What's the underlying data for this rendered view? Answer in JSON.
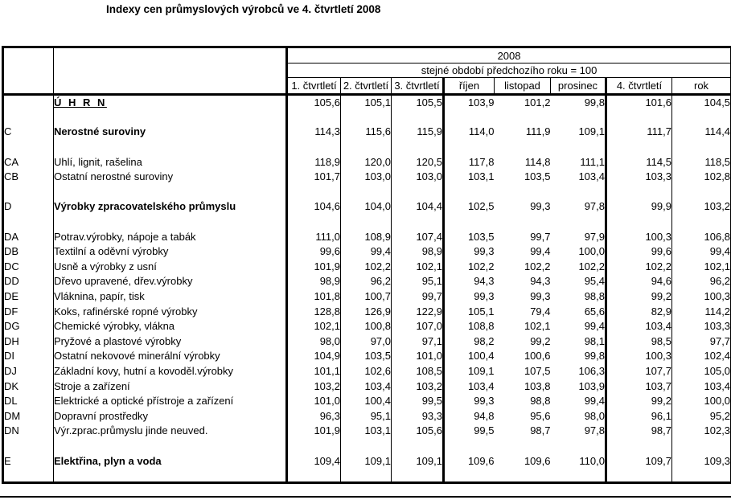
{
  "title": "Indexy cen průmyslových výrobců ve 4. čtvrtletí 2008",
  "table": {
    "year_header": "2008",
    "subheader": "stejné období předchozího roku = 100",
    "columns": [
      "1. čtvrtletí",
      "2. čtvrtletí",
      "3. čtvrtletí",
      "říjen",
      "listopad",
      "prosinec",
      "4. čtvrtletí",
      "rok"
    ],
    "rows": [
      {
        "style": "total",
        "code": "",
        "name": "Ú H R N",
        "values": [
          "105,6",
          "105,1",
          "105,5",
          "103,9",
          "101,2",
          "99,8",
          "101,6",
          "104,5"
        ]
      },
      {
        "blank": true
      },
      {
        "style": "bold",
        "code": "C",
        "name": "Nerostné suroviny",
        "values": [
          "114,3",
          "115,6",
          "115,9",
          "114,0",
          "111,9",
          "109,1",
          "111,7",
          "114,4"
        ]
      },
      {
        "blank": true
      },
      {
        "code": "CA",
        "name": "Uhlí, lignit, rašelina",
        "values": [
          "118,9",
          "120,0",
          "120,5",
          "117,8",
          "114,8",
          "111,1",
          "114,5",
          "118,5"
        ]
      },
      {
        "code": "CB",
        "name": "Ostatní nerostné suroviny",
        "values": [
          "101,7",
          "103,0",
          "103,0",
          "103,1",
          "103,5",
          "103,4",
          "103,3",
          "102,8"
        ]
      },
      {
        "blank": true
      },
      {
        "style": "bold",
        "code": "D",
        "name": "Výrobky zpracovatelského průmyslu",
        "values": [
          "104,6",
          "104,0",
          "104,4",
          "102,5",
          "99,3",
          "97,8",
          "99,9",
          "103,2"
        ]
      },
      {
        "blank": true
      },
      {
        "code": "DA",
        "name": "Potrav.výrobky, nápoje a tabák",
        "values": [
          "111,0",
          "108,9",
          "107,4",
          "103,5",
          "99,7",
          "97,9",
          "100,3",
          "106,8"
        ]
      },
      {
        "code": "DB",
        "name": "Textilní a oděvní výrobky",
        "values": [
          "99,6",
          "99,4",
          "98,9",
          "99,3",
          "99,4",
          "100,0",
          "99,6",
          "99,4"
        ]
      },
      {
        "code": "DC",
        "name": "Usně a výrobky z usní",
        "values": [
          "101,9",
          "102,2",
          "102,1",
          "102,2",
          "102,2",
          "102,2",
          "102,2",
          "102,1"
        ]
      },
      {
        "code": "DD",
        "name": "Dřevo upravené, dřev.výrobky",
        "values": [
          "98,9",
          "96,2",
          "95,1",
          "94,3",
          "94,3",
          "95,4",
          "94,6",
          "96,2"
        ]
      },
      {
        "code": "DE",
        "name": "Vláknina, papír, tisk",
        "values": [
          "101,8",
          "100,7",
          "99,7",
          "99,3",
          "99,3",
          "98,8",
          "99,2",
          "100,3"
        ]
      },
      {
        "code": "DF",
        "name": "Koks, rafinérské ropné výrobky",
        "values": [
          "128,8",
          "126,9",
          "122,9",
          "105,1",
          "79,4",
          "65,6",
          "82,9",
          "114,2"
        ]
      },
      {
        "code": "DG",
        "name": "Chemické výrobky, vlákna",
        "values": [
          "102,1",
          "100,8",
          "107,0",
          "108,8",
          "102,1",
          "99,4",
          "103,4",
          "103,3"
        ]
      },
      {
        "code": "DH",
        "name": "Pryžové a plastové výrobky",
        "values": [
          "98,0",
          "97,0",
          "97,1",
          "98,2",
          "99,2",
          "98,1",
          "98,5",
          "97,7"
        ]
      },
      {
        "code": "DI",
        "name": "Ostatní nekovové minerální výrobky",
        "values": [
          "104,9",
          "103,5",
          "101,0",
          "100,4",
          "100,6",
          "99,8",
          "100,3",
          "102,4"
        ]
      },
      {
        "code": "DJ",
        "name": "Základní kovy, hutní a kovoděl.výrobky",
        "values": [
          "101,1",
          "102,6",
          "108,5",
          "109,1",
          "107,5",
          "106,3",
          "107,7",
          "105,0"
        ]
      },
      {
        "code": "DK",
        "name": "Stroje a zařízení",
        "values": [
          "103,2",
          "103,4",
          "103,2",
          "103,4",
          "103,8",
          "103,9",
          "103,7",
          "103,4"
        ]
      },
      {
        "code": "DL",
        "name": "Elektrické a optické přístroje a zařízení",
        "values": [
          "101,0",
          "100,4",
          "99,5",
          "99,3",
          "98,8",
          "99,4",
          "99,2",
          "100,0"
        ]
      },
      {
        "code": "DM",
        "name": "Dopravní prostředky",
        "values": [
          "96,3",
          "95,1",
          "93,3",
          "94,8",
          "95,6",
          "98,0",
          "96,1",
          "95,2"
        ]
      },
      {
        "code": "DN",
        "name": "Výr.zprac.průmyslu jinde neuved.",
        "values": [
          "101,9",
          "103,1",
          "105,6",
          "99,5",
          "98,7",
          "97,8",
          "98,7",
          "102,3"
        ]
      },
      {
        "blank": true
      },
      {
        "style": "bold",
        "code": "E",
        "name": "Elektřina, plyn a voda",
        "values": [
          "109,4",
          "109,1",
          "109,1",
          "109,6",
          "109,6",
          "110,0",
          "109,7",
          "109,3"
        ]
      },
      {
        "blank": true
      }
    ]
  }
}
